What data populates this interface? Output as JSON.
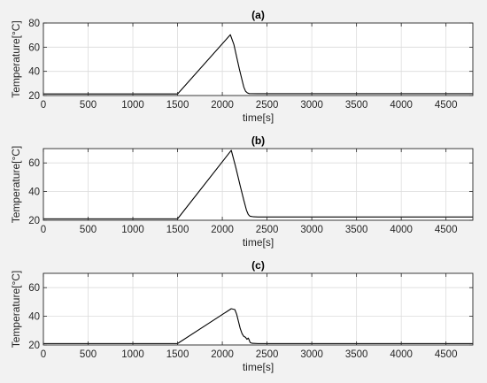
{
  "chart_data": [
    {
      "type": "line",
      "title": "(a)",
      "xlabel": "time[s]",
      "ylabel": "Temperature[°C]",
      "xlim": [
        0,
        4800
      ],
      "ylim": [
        20,
        80
      ],
      "grid": true,
      "xticks": [
        0,
        500,
        1000,
        1500,
        2000,
        2500,
        3000,
        3500,
        4000,
        4500
      ],
      "yticks": [
        20,
        40,
        60,
        80
      ],
      "series": [
        {
          "x": [
            0,
            1500,
            2090,
            2130,
            2160,
            2190,
            2220,
            2240,
            2260,
            2280,
            2300,
            2400,
            4800
          ],
          "y": [
            21.3,
            21.3,
            70.3,
            62.0,
            52.0,
            42.0,
            33.0,
            27.0,
            23.5,
            22.2,
            21.6,
            21.5,
            21.5
          ]
        }
      ]
    },
    {
      "type": "line",
      "title": "(b)",
      "xlabel": "time[s]",
      "ylabel": "Temperature[°C]",
      "xlim": [
        0,
        4800
      ],
      "ylim": [
        20,
        70
      ],
      "grid": true,
      "xticks": [
        0,
        500,
        1000,
        1500,
        2000,
        2500,
        3000,
        3500,
        4000,
        4500
      ],
      "yticks": [
        20,
        40,
        60
      ],
      "series": [
        {
          "x": [
            0,
            1500,
            2100,
            2150,
            2200,
            2240,
            2270,
            2290,
            2310,
            2350,
            2400,
            4800
          ],
          "y": [
            21.0,
            21.0,
            68.8,
            57.0,
            44.0,
            34.0,
            27.0,
            24.0,
            22.8,
            22.4,
            22.3,
            22.3
          ]
        }
      ]
    },
    {
      "type": "line",
      "title": "(c)",
      "xlabel": "time[s]",
      "ylabel": "Temperature[°C]",
      "xlim": [
        0,
        4800
      ],
      "ylim": [
        20,
        70
      ],
      "grid": true,
      "xticks": [
        0,
        500,
        1000,
        1500,
        2000,
        2500,
        3000,
        3500,
        4000,
        4500
      ],
      "yticks": [
        20,
        40,
        60
      ],
      "series": [
        {
          "x": [
            0,
            1500,
            2100,
            2140,
            2160,
            2180,
            2200,
            2220,
            2240,
            2260,
            2275,
            2290,
            2300,
            2310,
            2330,
            2400,
            4800
          ],
          "y": [
            21.0,
            21.0,
            45.3,
            44.7,
            41.5,
            36.5,
            31.5,
            28.0,
            26.0,
            25.3,
            24.0,
            24.8,
            23.5,
            21.8,
            21.2,
            21.0,
            21.0
          ]
        }
      ]
    }
  ]
}
